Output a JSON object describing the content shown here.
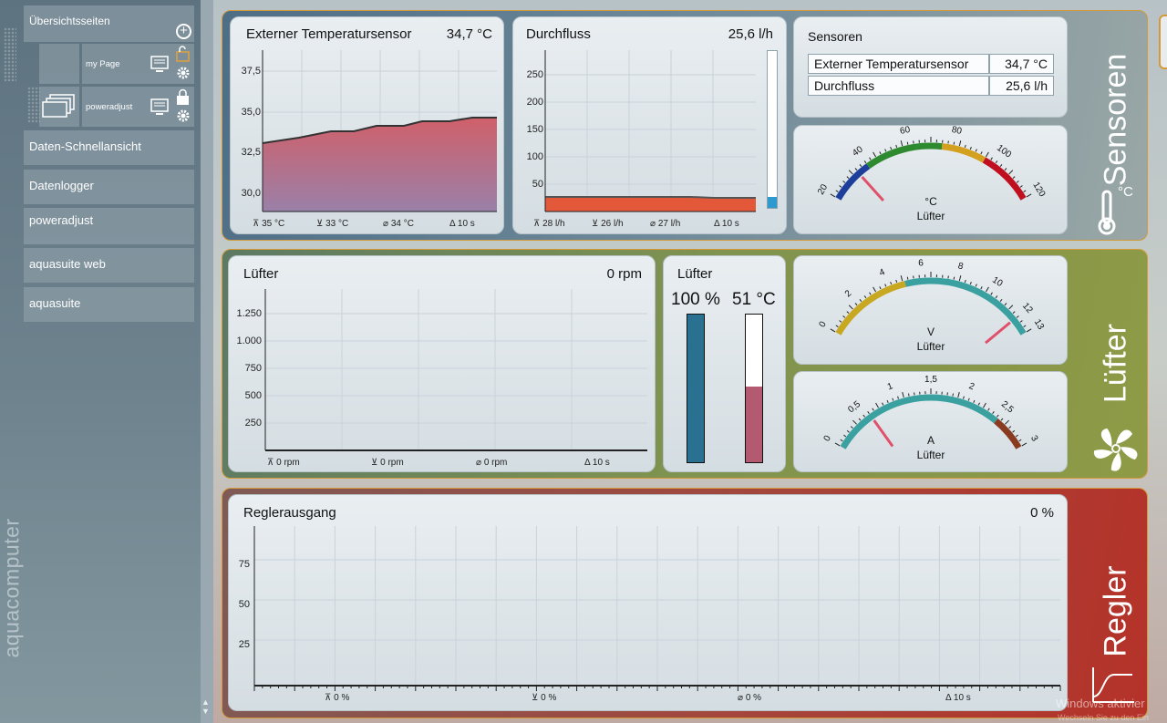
{
  "sidebar": {
    "overview_label": "Übersichtsseiten",
    "pages": [
      {
        "label": "my Page"
      },
      {
        "label": "poweradjust"
      }
    ],
    "items": [
      {
        "label": "Daten-Schnellansicht"
      },
      {
        "label": "Datenlogger"
      },
      {
        "label": "poweradjust"
      },
      {
        "label": "aquasuite web"
      },
      {
        "label": "aquasuite"
      }
    ],
    "brand": "aquacomputer"
  },
  "groups": {
    "sensoren": "Sensoren",
    "sensoren_unit": "°C",
    "luefter": "Lüfter",
    "regler": "Regler"
  },
  "temp_panel": {
    "title": "Externer Temperatursensor",
    "value": "34,7 °C",
    "yticks": [
      "37,5",
      "35,0",
      "32,5",
      "30,0"
    ],
    "stats": {
      "max": "35 °C",
      "min": "33 °C",
      "avg": "34 °C",
      "interval": "10 s"
    }
  },
  "flow_panel": {
    "title": "Durchfluss",
    "value": "25,6 l/h",
    "yticks": [
      "250",
      "200",
      "150",
      "100",
      "50"
    ],
    "stats": {
      "max": "28 l/h",
      "min": "26 l/h",
      "avg": "27 l/h",
      "interval": "10 s"
    },
    "level": 0.07
  },
  "sensor_list": {
    "title": "Sensoren",
    "rows": [
      {
        "name": "Externer Temperatursensor",
        "value": "34,7 °C"
      },
      {
        "name": "Durchfluss",
        "value": "25,6 l/h"
      }
    ]
  },
  "temp_gauge": {
    "ticks": [
      "20",
      "40",
      "60",
      "80",
      "100",
      "120"
    ],
    "unit": "°C",
    "label": "Lüfter",
    "value": 34.7,
    "min": 20,
    "max": 120
  },
  "fan_panel": {
    "title": "Lüfter",
    "value": "0 rpm",
    "yticks": [
      "1.250",
      "1.000",
      "750",
      "500",
      "250"
    ],
    "stats": {
      "max": "0 rpm",
      "min": "0 rpm",
      "avg": "0 rpm",
      "interval": "10 s"
    }
  },
  "fan_bars": {
    "title": "Lüfter",
    "power_value": "100 %",
    "temp_value": "51 °C",
    "power_level": 1.0,
    "temp_level": 0.51
  },
  "volt_gauge": {
    "ticks": [
      "0",
      "2",
      "4",
      "6",
      "8",
      "10",
      "12",
      "13"
    ],
    "unit": "V",
    "label": "Lüfter",
    "value": 12,
    "min": 0,
    "max": 13
  },
  "amp_gauge": {
    "ticks": [
      "0",
      "0,5",
      "1",
      "1,5",
      "2",
      "2,5",
      "3"
    ],
    "unit": "A",
    "label": "Lüfter",
    "value": 0.6,
    "min": 0,
    "max": 3
  },
  "regler_panel": {
    "title": "Reglerausgang",
    "value": "0 %",
    "yticks": [
      "75",
      "50",
      "25"
    ],
    "stats": {
      "max": "0 %",
      "min": "0 %",
      "avg": "0 %",
      "interval": "10 s"
    }
  },
  "watermark": {
    "line1": "Windows aktivier",
    "line2": "Wechseln Sie zu den Ein"
  },
  "colors": {
    "accent": "#d49a3a",
    "temp_fill": "#c76070",
    "flow_fill": "#e05a35",
    "fan_power": "#2a7090",
    "fan_temp": "#b45a70"
  }
}
